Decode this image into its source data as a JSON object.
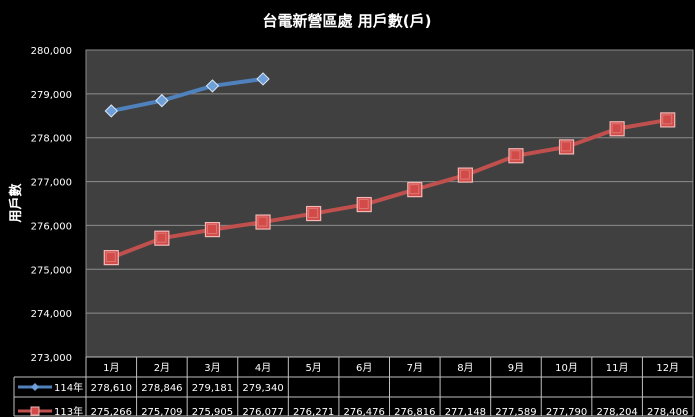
{
  "chart_data": {
    "type": "line",
    "title": "台電新營區處 用戶數(戶)",
    "ylabel": "用戶數",
    "xlabel": "",
    "categories": [
      "1月",
      "2月",
      "3月",
      "4月",
      "5月",
      "6月",
      "7月",
      "8月",
      "9月",
      "10月",
      "11月",
      "12月"
    ],
    "ylim": [
      273000,
      280000
    ],
    "ytick_step": 1000,
    "yticks": [
      "273,000",
      "274,000",
      "275,000",
      "276,000",
      "277,000",
      "278,000",
      "279,000",
      "280,000"
    ],
    "grid": true,
    "legend_placement": "data-table-left",
    "series": [
      {
        "name": "114年",
        "color": "#4f81bd",
        "marker": "diamond",
        "values": [
          278610,
          278846,
          279181,
          279340,
          null,
          null,
          null,
          null,
          null,
          null,
          null,
          null
        ],
        "labels": [
          "278,610",
          "278,846",
          "279,181",
          "279,340",
          "",
          "",
          "",
          "",
          "",
          "",
          "",
          ""
        ]
      },
      {
        "name": "113年",
        "color": "#c0504d",
        "marker": "square",
        "values": [
          275266,
          275709,
          275905,
          276077,
          276271,
          276476,
          276816,
          277148,
          277589,
          277790,
          278204,
          278406
        ],
        "labels": [
          "275,266",
          "275,709",
          "275,905",
          "276,077",
          "276,271",
          "276,476",
          "276,816",
          "277,148",
          "277,589",
          "277,790",
          "278,204",
          "278,406"
        ]
      }
    ]
  }
}
